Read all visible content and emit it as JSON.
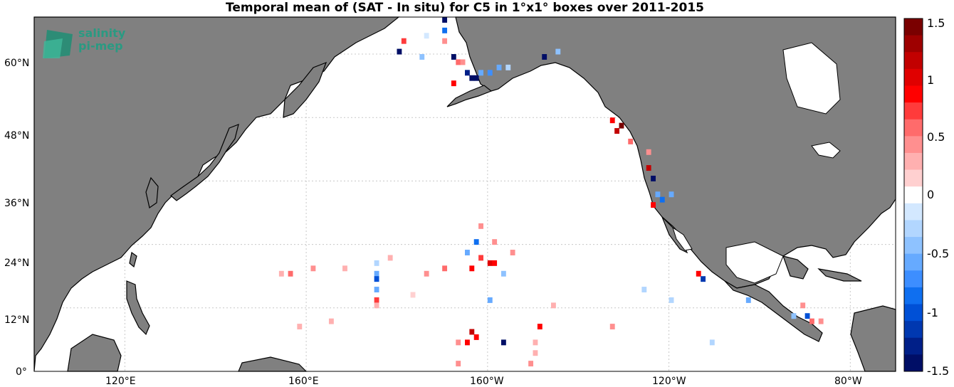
{
  "title": "Temporal mean of (SAT - In situ) for C5 in 1°x1° boxes over 2011-2015",
  "logo": {
    "line1": "salinity",
    "line2": "pi-mep"
  },
  "lat_ticks": [
    "60°N",
    "48°N",
    "36°N",
    "24°N",
    "12°N",
    "0°"
  ],
  "lon_ticks": [
    "120°E",
    "160°E",
    "160°W",
    "120°W",
    "80°W"
  ],
  "colorbar": {
    "range": [
      -1.5,
      1.5
    ],
    "tick_labels": [
      "1.5",
      "1",
      "0.5",
      "0",
      "-0.5",
      "-1",
      "-1.5"
    ],
    "colors_top_to_bottom": [
      "#7a0000",
      "#9e0000",
      "#c20000",
      "#e00000",
      "#ff0000",
      "#ff3b3b",
      "#ff6b6b",
      "#ff8f8f",
      "#ffb0b0",
      "#ffd0d0",
      "#ffffff",
      "#d3e8ff",
      "#b2d6ff",
      "#8ec2ff",
      "#66aaff",
      "#3d8eff",
      "#0f6ff0",
      "#0050d6",
      "#0038b0",
      "#001f88",
      "#000e66"
    ]
  },
  "colors": {
    "land": "#808080",
    "ocean": "#ffffff",
    "grid": "#c8c8c8"
  },
  "chart_data": {
    "type": "heatmap",
    "xlabel": "",
    "ylabel": "",
    "xlim_lon": [
      100,
      290
    ],
    "ylim_lat": [
      0,
      67
    ],
    "cells": [
      {
        "lon": 180,
        "lat": 60,
        "v": -1.5
      },
      {
        "lon": 181,
        "lat": 62,
        "v": 0.7
      },
      {
        "lon": 186,
        "lat": 63,
        "v": -0.2
      },
      {
        "lon": 190,
        "lat": 66,
        "v": -1.5
      },
      {
        "lon": 190,
        "lat": 64,
        "v": -0.8
      },
      {
        "lon": 190,
        "lat": 62,
        "v": 0.4
      },
      {
        "lon": 192,
        "lat": 59,
        "v": -1.5
      },
      {
        "lon": 193,
        "lat": 58,
        "v": 0.6
      },
      {
        "lon": 194,
        "lat": 58,
        "v": 0.5
      },
      {
        "lon": 195,
        "lat": 56,
        "v": -1.3
      },
      {
        "lon": 196,
        "lat": 55,
        "v": -1.4
      },
      {
        "lon": 197,
        "lat": 55,
        "v": -1.5
      },
      {
        "lon": 198,
        "lat": 56,
        "v": -0.6
      },
      {
        "lon": 200,
        "lat": 56,
        "v": -0.7
      },
      {
        "lon": 202,
        "lat": 57,
        "v": -0.5
      },
      {
        "lon": 204,
        "lat": 57,
        "v": -0.3
      },
      {
        "lon": 212,
        "lat": 59,
        "v": -1.5
      },
      {
        "lon": 215,
        "lat": 60,
        "v": -0.4
      },
      {
        "lon": 192,
        "lat": 54,
        "v": 0.9
      },
      {
        "lon": 185,
        "lat": 59,
        "v": -0.4
      },
      {
        "lon": 227,
        "lat": 47,
        "v": 0.9
      },
      {
        "lon": 228,
        "lat": 45,
        "v": 1.2
      },
      {
        "lon": 229,
        "lat": 46,
        "v": 1.4
      },
      {
        "lon": 231,
        "lat": 43,
        "v": 0.6
      },
      {
        "lon": 235,
        "lat": 41,
        "v": 0.5
      },
      {
        "lon": 235,
        "lat": 38,
        "v": 1.2
      },
      {
        "lon": 236,
        "lat": 36,
        "v": -1.5
      },
      {
        "lon": 237,
        "lat": 33,
        "v": -0.6
      },
      {
        "lon": 238,
        "lat": 32,
        "v": -0.8
      },
      {
        "lon": 240,
        "lat": 33,
        "v": -0.5
      },
      {
        "lon": 236,
        "lat": 31,
        "v": 0.9
      },
      {
        "lon": 198,
        "lat": 21,
        "v": 0.7
      },
      {
        "lon": 200,
        "lat": 20,
        "v": 1.0
      },
      {
        "lon": 201,
        "lat": 20,
        "v": 0.8
      },
      {
        "lon": 195,
        "lat": 22,
        "v": -0.6
      },
      {
        "lon": 196,
        "lat": 19,
        "v": 0.8
      },
      {
        "lon": 190,
        "lat": 19,
        "v": 0.6
      },
      {
        "lon": 186,
        "lat": 18,
        "v": 0.4
      },
      {
        "lon": 197,
        "lat": 24,
        "v": -0.8
      },
      {
        "lon": 198,
        "lat": 27,
        "v": 0.5
      },
      {
        "lon": 201,
        "lat": 24,
        "v": 0.4
      },
      {
        "lon": 205,
        "lat": 22,
        "v": 0.5
      },
      {
        "lon": 203,
        "lat": 18,
        "v": -0.4
      },
      {
        "lon": 175,
        "lat": 20,
        "v": -0.3
      },
      {
        "lon": 175,
        "lat": 18,
        "v": -0.5
      },
      {
        "lon": 175,
        "lat": 17,
        "v": -1.0
      },
      {
        "lon": 175,
        "lat": 15,
        "v": -0.5
      },
      {
        "lon": 175,
        "lat": 13,
        "v": 0.7
      },
      {
        "lon": 175,
        "lat": 12,
        "v": 0.3
      },
      {
        "lon": 154,
        "lat": 18,
        "v": 0.3
      },
      {
        "lon": 156,
        "lat": 18,
        "v": 0.6
      },
      {
        "lon": 161,
        "lat": 19,
        "v": 0.5
      },
      {
        "lon": 168,
        "lat": 19,
        "v": 0.3
      },
      {
        "lon": 178,
        "lat": 21,
        "v": 0.3
      },
      {
        "lon": 196,
        "lat": 7,
        "v": 1.2
      },
      {
        "lon": 197,
        "lat": 6,
        "v": 0.9
      },
      {
        "lon": 195,
        "lat": 5,
        "v": 0.8
      },
      {
        "lon": 193,
        "lat": 5,
        "v": 0.5
      },
      {
        "lon": 203,
        "lat": 5,
        "v": -1.4
      },
      {
        "lon": 211,
        "lat": 8,
        "v": 0.8
      },
      {
        "lon": 210,
        "lat": 5,
        "v": 0.3
      },
      {
        "lon": 210,
        "lat": 3,
        "v": 0.3
      },
      {
        "lon": 209,
        "lat": 1,
        "v": 0.4
      },
      {
        "lon": 214,
        "lat": 12,
        "v": 0.3
      },
      {
        "lon": 227,
        "lat": 8,
        "v": 0.4
      },
      {
        "lon": 234,
        "lat": 15,
        "v": -0.3
      },
      {
        "lon": 246,
        "lat": 18,
        "v": 0.8
      },
      {
        "lon": 247,
        "lat": 17,
        "v": -1.1
      },
      {
        "lon": 257,
        "lat": 13,
        "v": -0.5
      },
      {
        "lon": 269,
        "lat": 12,
        "v": 0.5
      },
      {
        "lon": 270,
        "lat": 10,
        "v": -1.0
      },
      {
        "lon": 271,
        "lat": 9,
        "v": 0.6
      },
      {
        "lon": 273,
        "lat": 9,
        "v": 0.5
      },
      {
        "lon": 267,
        "lat": 10,
        "v": -0.4
      },
      {
        "lon": 249,
        "lat": 5,
        "v": -0.3
      },
      {
        "lon": 158,
        "lat": 8,
        "v": 0.3
      },
      {
        "lon": 165,
        "lat": 9,
        "v": 0.3
      },
      {
        "lon": 193,
        "lat": 1,
        "v": 0.5
      },
      {
        "lon": 183,
        "lat": 14,
        "v": 0.2
      },
      {
        "lon": 200,
        "lat": 13,
        "v": -0.6
      },
      {
        "lon": 240,
        "lat": 13,
        "v": -0.3
      }
    ]
  }
}
